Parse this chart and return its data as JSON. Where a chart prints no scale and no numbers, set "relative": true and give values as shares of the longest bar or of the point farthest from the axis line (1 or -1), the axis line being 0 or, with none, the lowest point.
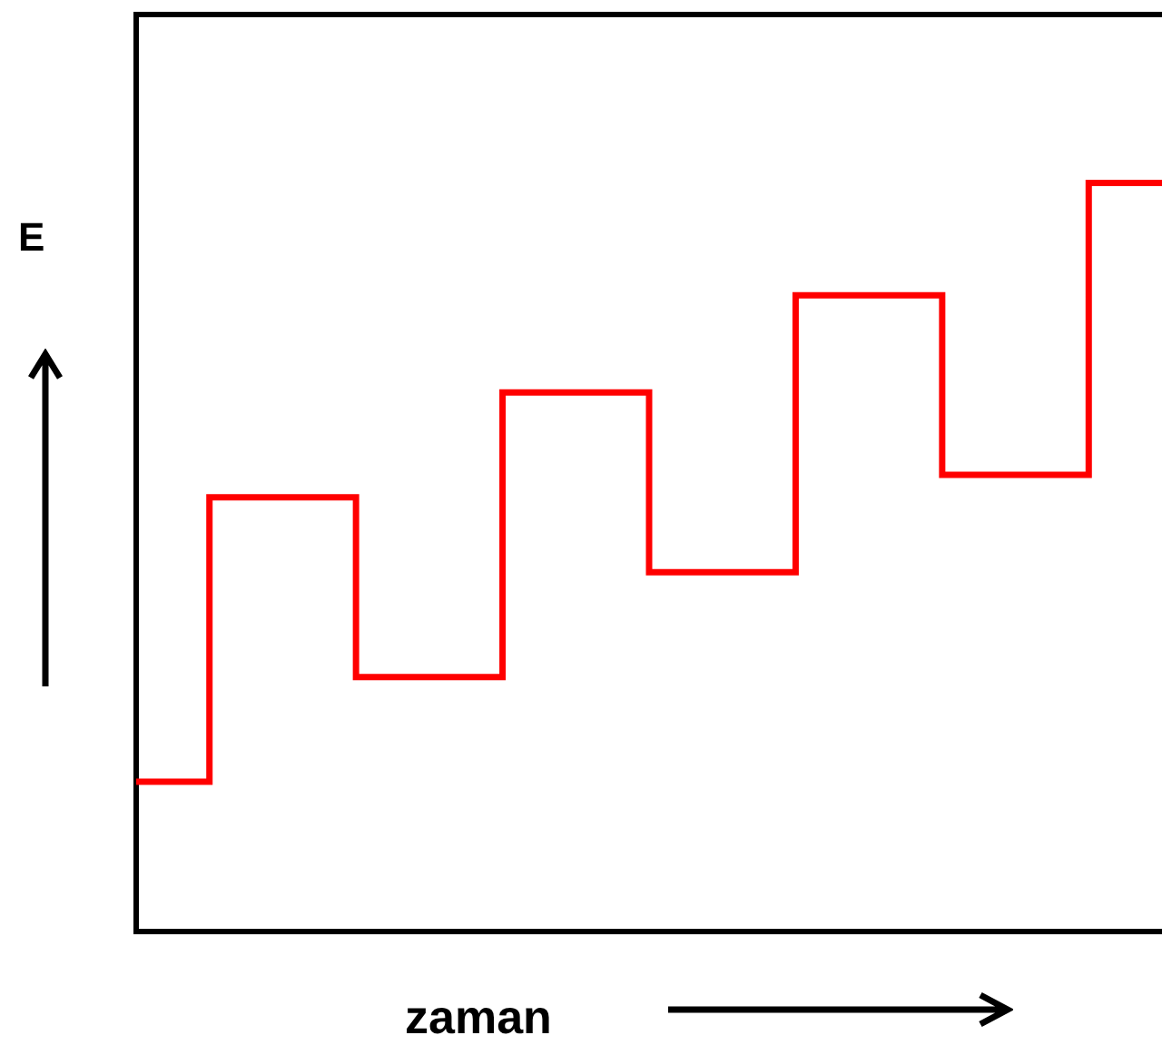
{
  "chart_data": {
    "type": "step",
    "xlabel": "zaman",
    "ylabel": "E",
    "relative": true,
    "categories": [
      null,
      null,
      null,
      null,
      null,
      null,
      null,
      null
    ],
    "series": [
      {
        "color": "#ff0000",
        "values": [
          0.2,
          0.58,
          0.34,
          0.72,
          0.48,
          0.85,
          0.61,
          1
        ]
      }
    ]
  }
}
